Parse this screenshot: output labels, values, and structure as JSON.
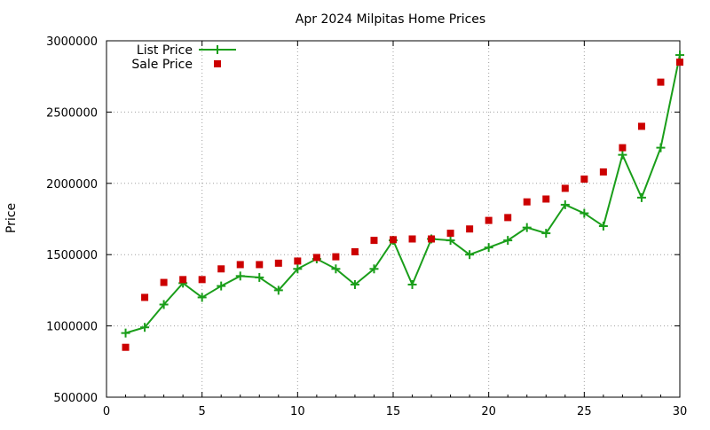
{
  "chart_data": {
    "type": "line",
    "title": "Apr 2024 Milpitas Home Prices",
    "xlabel": "",
    "ylabel": "Price",
    "xlim": [
      0,
      30
    ],
    "ylim": [
      500000,
      3000000
    ],
    "grid": true,
    "legend_position": "top-left",
    "x_ticks": [
      "0",
      "5",
      "10",
      "15",
      "20",
      "25",
      "30"
    ],
    "y_ticks": [
      "500000",
      "1000000",
      "1500000",
      "2000000",
      "2500000",
      "3000000"
    ],
    "x": [
      1,
      2,
      3,
      4,
      5,
      6,
      7,
      8,
      9,
      10,
      11,
      12,
      13,
      14,
      15,
      16,
      17,
      18,
      19,
      20,
      21,
      22,
      23,
      24,
      25,
      26,
      27,
      28,
      29,
      30
    ],
    "series": [
      {
        "name": "List Price",
        "style": "line-points",
        "color": "#1a9e1a",
        "marker": "plus",
        "values": [
          950000,
          990000,
          1150000,
          1300000,
          1200000,
          1280000,
          1350000,
          1340000,
          1250000,
          1400000,
          1470000,
          1400000,
          1290000,
          1400000,
          1600000,
          1290000,
          1610000,
          1600000,
          1500000,
          1550000,
          1600000,
          1690000,
          1650000,
          1850000,
          1790000,
          1700000,
          2200000,
          1900000,
          2250000,
          2900000
        ]
      },
      {
        "name": "Sale Price",
        "style": "points",
        "color": "#cc0000",
        "marker": "square",
        "values": [
          850000,
          1200000,
          1305000,
          1325000,
          1325000,
          1400000,
          1430000,
          1430000,
          1440000,
          1455000,
          1480000,
          1485000,
          1520000,
          1600000,
          1605000,
          1610000,
          1610000,
          1650000,
          1680000,
          1740000,
          1760000,
          1870000,
          1890000,
          1965000,
          2030000,
          2080000,
          2250000,
          2400000,
          2710000,
          2850000
        ]
      }
    ]
  }
}
